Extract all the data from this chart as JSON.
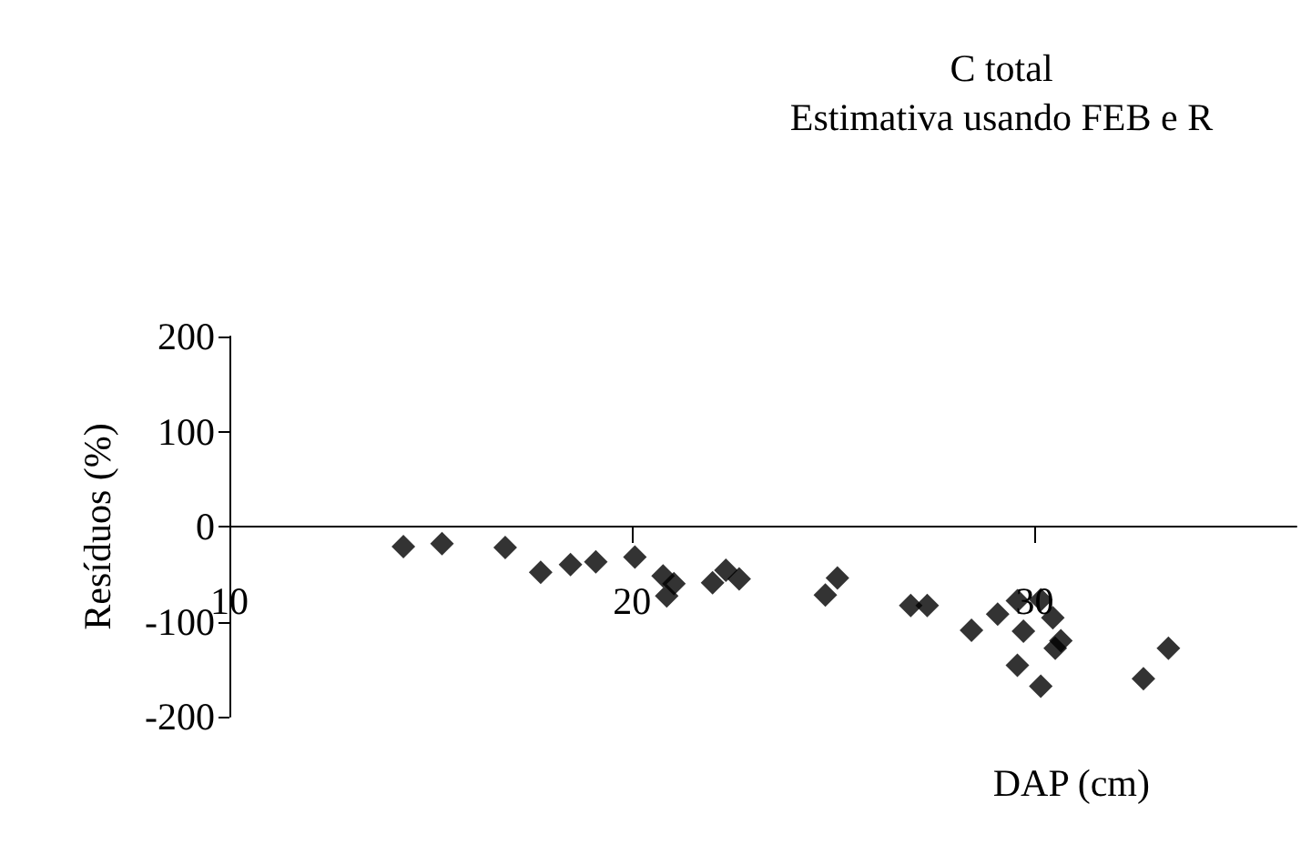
{
  "chart_data": {
    "type": "scatter",
    "title": "C total",
    "subtitle": "Estimativa usando FEB e R",
    "xlabel": "DAP (cm)",
    "ylabel": "Resíduos (%)",
    "x": [
      14.32,
      15.28,
      16.85,
      17.73,
      18.47,
      19.1,
      20.07,
      20.77,
      21.04,
      20.86,
      22.0,
      22.33,
      22.66,
      24.8,
      25.1,
      26.92,
      27.33,
      28.43,
      29.08,
      29.57,
      30.15,
      30.45,
      29.72,
      30.65,
      30.51,
      29.57,
      30.15,
      32.7,
      33.32
    ],
    "series": [
      {
        "color": "#000000",
        "values": [
          -21,
          -18,
          -22,
          -48,
          -40,
          -37,
          -32,
          -52,
          -60,
          -73,
          -59,
          -46,
          -55,
          -72,
          -54,
          -83,
          -83,
          -109,
          -92,
          -78,
          -77,
          -96,
          -110,
          -120,
          -128,
          -146,
          -168,
          -160,
          -128
        ]
      }
    ],
    "xlim": [
      10,
      36.5
    ],
    "xticks": [
      10,
      20,
      30
    ],
    "ylim": [
      -200,
      200
    ],
    "yticks": [
      -200,
      -100,
      0,
      100,
      200
    ],
    "grid": false,
    "marker": "diamond"
  }
}
